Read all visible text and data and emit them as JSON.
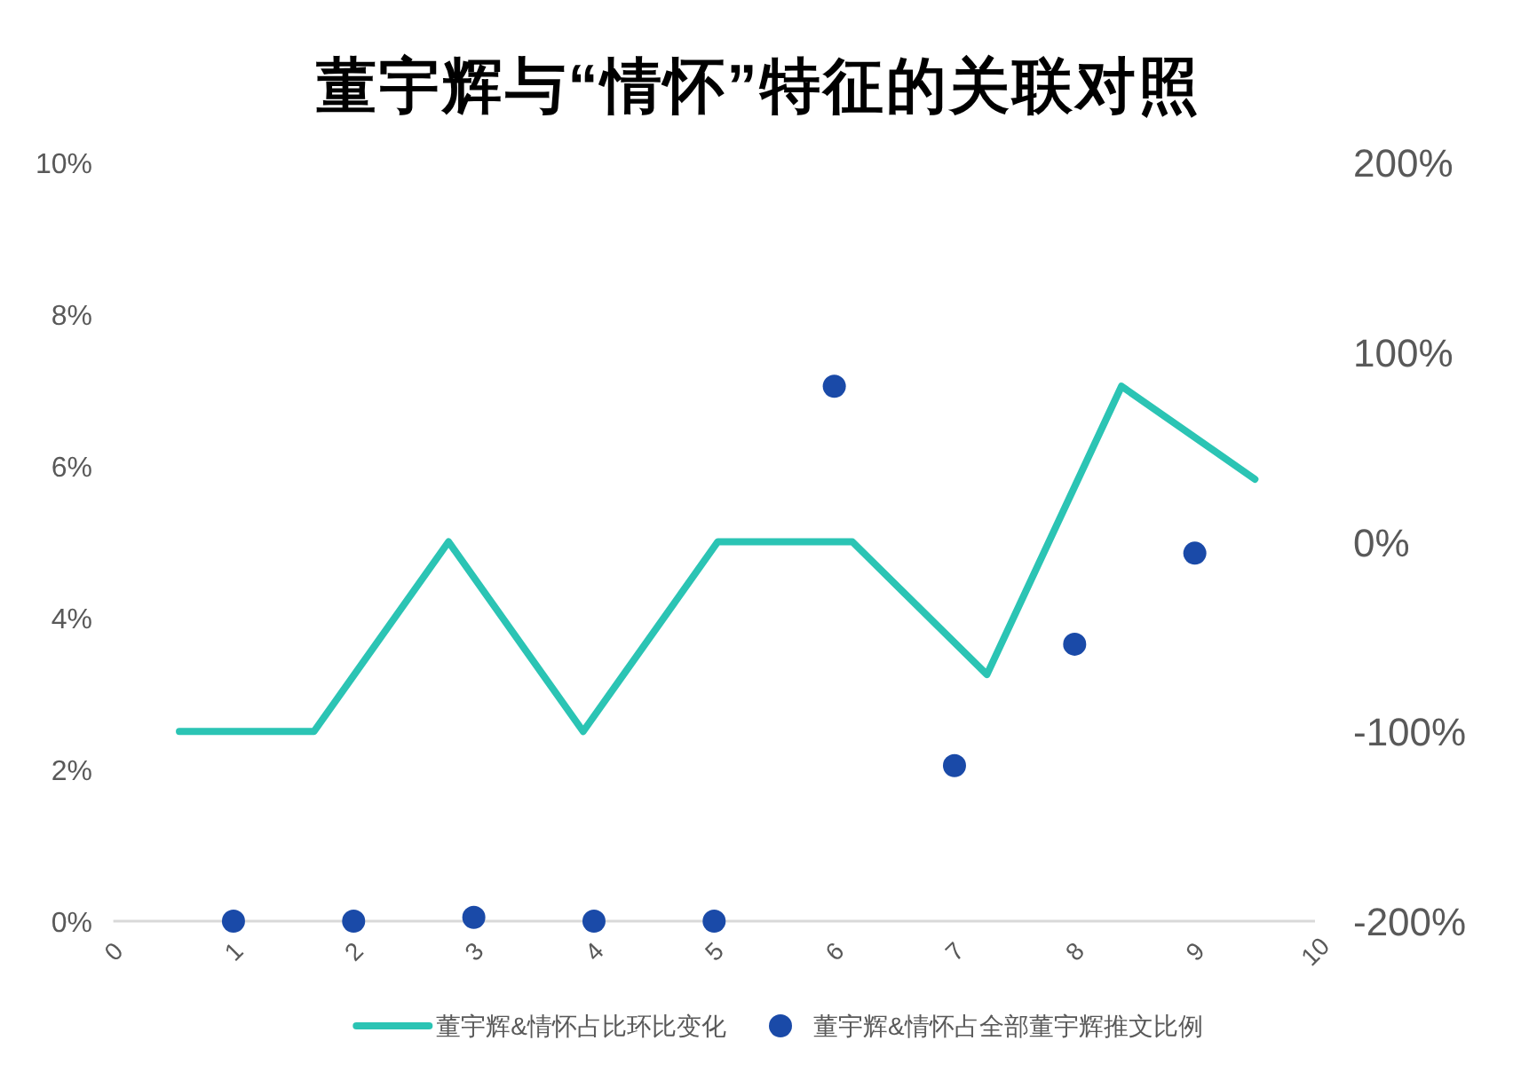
{
  "chart_data": {
    "type": "scatter",
    "title": "董宇辉与“情怀”特征的关联对照",
    "xlim": [
      0,
      10
    ],
    "xticks": [
      0,
      1,
      2,
      3,
      4,
      5,
      6,
      7,
      8,
      9,
      10
    ],
    "ylim": [
      0,
      10
    ],
    "yticks": [
      {
        "value": 0,
        "label": "0%"
      },
      {
        "value": 2,
        "label": "2%"
      },
      {
        "value": 4,
        "label": "4%"
      },
      {
        "value": 6,
        "label": "6%"
      },
      {
        "value": 8,
        "label": "8%"
      },
      {
        "value": 10,
        "label": "10%"
      }
    ],
    "y2lim": [
      -200,
      200
    ],
    "y2ticks": [
      {
        "value": -200,
        "label": "-200%"
      },
      {
        "value": -100,
        "label": "-100%"
      },
      {
        "value": 0,
        "label": "0%"
      },
      {
        "value": 100,
        "label": "100%"
      },
      {
        "value": 200,
        "label": "200%"
      }
    ],
    "series": [
      {
        "name": "董宇辉&情怀占比环比变化",
        "type": "line",
        "axis": "y2",
        "color": "#2bc4b4",
        "x": [
          0.55,
          1.67,
          2.79,
          3.91,
          5.03,
          6.15,
          7.27,
          8.39,
          9.5
        ],
        "values": [
          -100,
          -100,
          0,
          -100,
          0,
          0,
          -70,
          82,
          33
        ]
      },
      {
        "name": "董宇辉&情怀占全部董宇辉推文比例",
        "marker": "circle",
        "color": "#1a4aa8",
        "x": [
          1,
          2,
          3,
          4,
          5,
          6,
          7,
          8,
          9
        ],
        "values": [
          0,
          0,
          0.05,
          0,
          0,
          7.05,
          2.05,
          3.65,
          4.85
        ]
      }
    ],
    "legend": "bottom"
  }
}
